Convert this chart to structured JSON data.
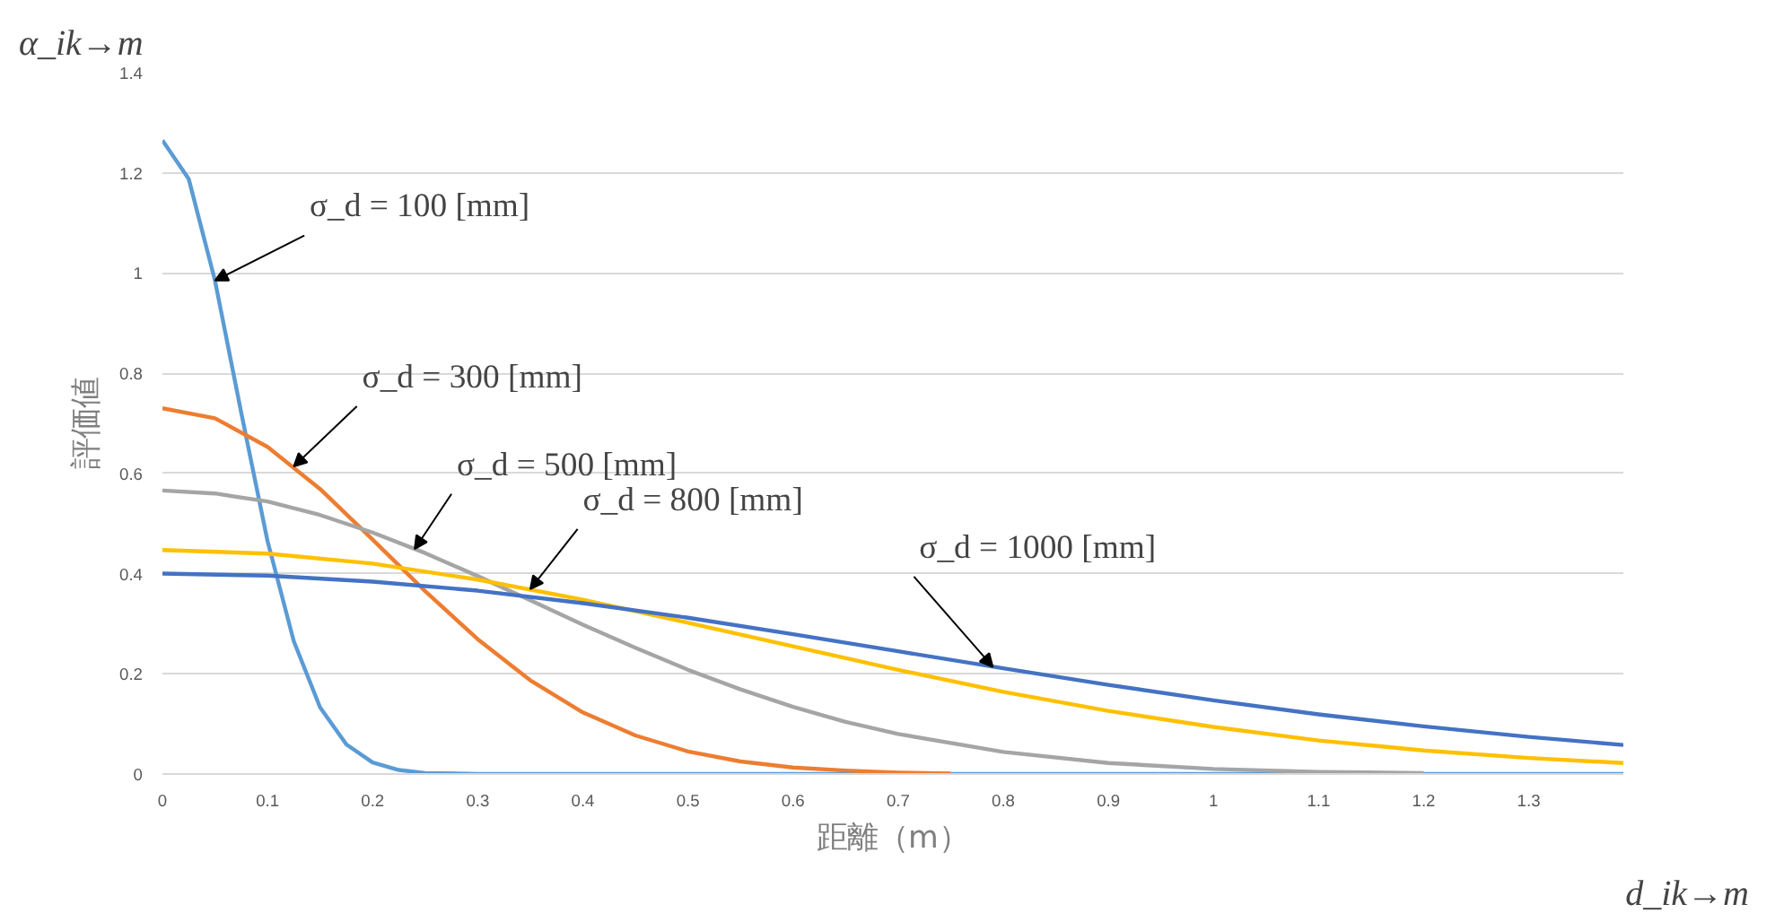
{
  "chart_data": {
    "type": "line",
    "xlabel": "距離（m）",
    "ylabel": "評価値",
    "annotations": [
      "α_ik→m",
      "d_ik→m",
      {
        "text": "σ_d = 100 [mm]",
        "x": 0.05,
        "y": 0.985
      },
      {
        "text": "σ_d = 300 [mm]",
        "x": 0.125,
        "y": 0.614
      },
      {
        "text": "σ_d = 500 [mm]",
        "x": 0.24,
        "y": 0.449
      },
      {
        "text": "σ_d = 800 [mm]",
        "x": 0.35,
        "y": 0.369
      },
      {
        "text": "σ_d = 1000 [mm]",
        "x": 0.79,
        "y": 0.214
      }
    ],
    "series": [
      {
        "color": "#5b9bd5",
        "x": [
          0,
          0.025,
          0.05,
          0.075,
          0.1,
          0.125,
          0.15,
          0.175,
          0.2,
          0.225,
          0.25,
          0.3,
          1.39
        ],
        "values": [
          1.265,
          1.188,
          0.985,
          0.721,
          0.465,
          0.265,
          0.133,
          0.059,
          0.023,
          0.008,
          0.002,
          0,
          0
        ]
      },
      {
        "color": "#ed7d31",
        "x": [
          0,
          0.05,
          0.1,
          0.15,
          0.2,
          0.25,
          0.3,
          0.35,
          0.4,
          0.45,
          0.5,
          0.55,
          0.6,
          0.65,
          0.7,
          0.75
        ],
        "values": [
          0.73,
          0.71,
          0.653,
          0.569,
          0.468,
          0.365,
          0.269,
          0.187,
          0.123,
          0.077,
          0.045,
          0.025,
          0.013,
          0.007,
          0.003,
          0.001
        ]
      },
      {
        "color": "#a5a5a5",
        "x": [
          0,
          0.05,
          0.1,
          0.15,
          0.2,
          0.25,
          0.3,
          0.35,
          0.4,
          0.45,
          0.5,
          0.55,
          0.6,
          0.65,
          0.7,
          0.8,
          0.9,
          1.0,
          1.1,
          1.2
        ],
        "values": [
          0.566,
          0.56,
          0.544,
          0.517,
          0.482,
          0.441,
          0.395,
          0.347,
          0.298,
          0.252,
          0.208,
          0.169,
          0.134,
          0.104,
          0.08,
          0.044,
          0.022,
          0.01,
          0.004,
          0.002
        ]
      },
      {
        "color": "#ffc000",
        "x": [
          0,
          0.1,
          0.2,
          0.3,
          0.4,
          0.5,
          0.6,
          0.7,
          0.8,
          0.9,
          1.0,
          1.1,
          1.2,
          1.3,
          1.39
        ],
        "values": [
          0.447,
          0.44,
          0.42,
          0.388,
          0.348,
          0.302,
          0.255,
          0.208,
          0.164,
          0.126,
          0.094,
          0.067,
          0.047,
          0.032,
          0.022
        ]
      },
      {
        "color": "#4472c4",
        "x": [
          0,
          0.1,
          0.2,
          0.3,
          0.4,
          0.5,
          0.6,
          0.7,
          0.8,
          0.9,
          1.0,
          1.1,
          1.2,
          1.3,
          1.39
        ],
        "values": [
          0.4,
          0.396,
          0.384,
          0.366,
          0.341,
          0.312,
          0.279,
          0.245,
          0.211,
          0.178,
          0.147,
          0.119,
          0.095,
          0.074,
          0.058
        ]
      }
    ],
    "xlim": [
      0,
      1.39
    ],
    "xticks": [
      0,
      0.1,
      0.2,
      0.3,
      0.4,
      0.5,
      0.6,
      0.7,
      0.8,
      0.9,
      1,
      1.1,
      1.2,
      1.3
    ],
    "ylim": [
      0,
      1.4
    ],
    "yticks": [
      0,
      0.2,
      0.4,
      0.6,
      0.8,
      1,
      1.2,
      1.4
    ],
    "grid": "y",
    "marker": "none",
    "line_style": "solid"
  }
}
